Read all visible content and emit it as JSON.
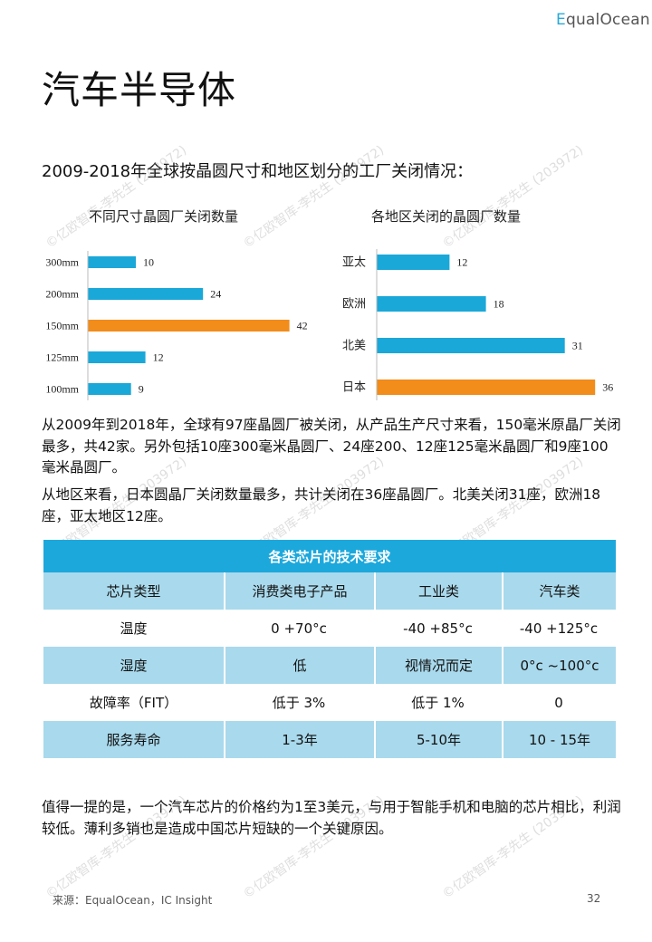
{
  "header": {
    "logo_first": "E",
    "logo_rest": "qualOcean",
    "page_title": "汽车半导体",
    "subtitle": "2009-2018年全球按晶圆尺寸和地区划分的工厂关闭情况："
  },
  "watermark_text": "©亿欧智库-李先生 (203972)",
  "chart_data": [
    {
      "type": "bar",
      "orientation": "horizontal",
      "title": "不同尺寸晶圆厂关闭数量",
      "categories": [
        "300mm",
        "200mm",
        "150mm",
        "125mm",
        "100mm"
      ],
      "values": [
        10,
        24,
        42,
        12,
        9
      ],
      "highlight": "150mm",
      "colors": {
        "bar": "#1aa8d9",
        "highlight": "#f28c1a"
      }
    },
    {
      "type": "bar",
      "orientation": "horizontal",
      "title": "各地区关闭的晶圆厂数量",
      "categories": [
        "亚太",
        "欧洲",
        "北美",
        "日本"
      ],
      "values": [
        12,
        18,
        31,
        36
      ],
      "highlight": "日本",
      "colors": {
        "bar": "#1aa8d9",
        "highlight": "#f28c1a"
      }
    }
  ],
  "body": {
    "para1": "从2009年到2018年，全球有97座晶圆厂被关闭，从产品生产尺寸来看，150毫米原晶厂关闭最多，共42家。另外包括10座300毫米晶圆厂、24座200、12座125毫米晶圆厂和9座100毫米晶圆厂。",
    "para2": "从地区来看，日本圆晶厂关闭数量最多，共计关闭在36座晶圆厂。北美关闭31座，欧洲18座，亚太地区12座。",
    "para3": "值得一提的是，一个汽车芯片的价格约为1至3美元，与用于智能手机和电脑的芯片相比，利润较低。薄利多销也是造成中国芯片短缺的一个关键原因。"
  },
  "table": {
    "caption": "各类芯片的技术要求",
    "headers": [
      "芯片类型",
      "消费类电子产品",
      "工业类",
      "汽车类"
    ],
    "rows": [
      [
        "温度",
        "0 +70°c",
        "-40 +85°c",
        "-40 +125°c"
      ],
      [
        "湿度",
        "低",
        "视情况而定",
        "0°c ~100°c"
      ],
      [
        "故障率（FIT）",
        "低于 3%",
        "低于 1%",
        "0"
      ],
      [
        "服务寿命",
        "1-3年",
        "5-10年",
        "10 - 15年"
      ]
    ]
  },
  "footer": {
    "source": "来源：EqualOcean，IC Insight",
    "page_number": "32"
  },
  "colors": {
    "accent": "#1da8dc",
    "table_shade": "#a9d9ec",
    "highlight": "#f28c1a"
  }
}
